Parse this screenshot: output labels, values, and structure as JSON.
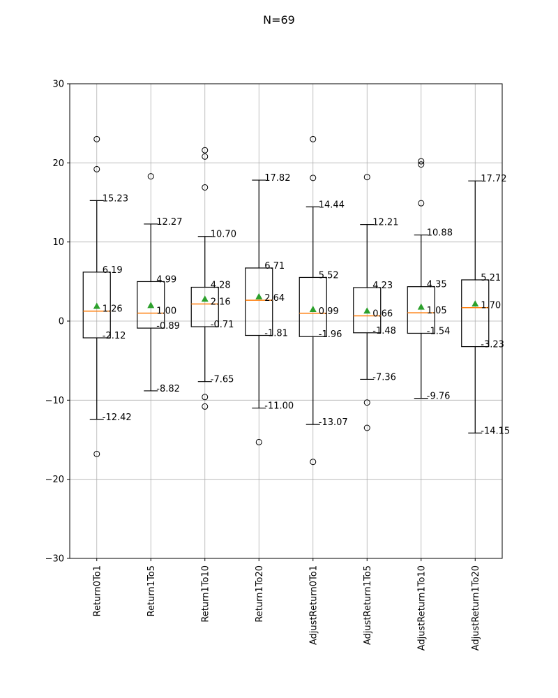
{
  "chart_data": {
    "type": "box",
    "title": "N=69",
    "xlabel": "",
    "ylabel": "",
    "ylim": [
      -30,
      30
    ],
    "yticks": [
      -30,
      -20,
      -10,
      0,
      10,
      20,
      30
    ],
    "ytick_labels": [
      "−30",
      "−20",
      "−10",
      "0",
      "10",
      "20",
      "30"
    ],
    "grid": true,
    "colors": {
      "box": "#000000",
      "median": "#ff7f0e",
      "mean": "#2ca02c",
      "grid": "#b0b0b0"
    },
    "categories": [
      "Return0To1",
      "Return1To5",
      "Return1To10",
      "Return1To20",
      "AdjustReturn0To1",
      "AdjustReturn1To5",
      "AdjustReturn1To10",
      "AdjustReturn1To20"
    ],
    "boxes": [
      {
        "name": "Return0To1",
        "whisker_high": 15.23,
        "q3": 6.19,
        "median": 1.26,
        "q1": -2.12,
        "whisker_low": -12.42,
        "mean": 1.9,
        "labels": {
          "whisker_high": "15.23",
          "q3": "6.19",
          "median": "1.26",
          "q1": "-2.12",
          "whisker_low": "-12.42"
        },
        "outliers": [
          23.0,
          19.2,
          -16.8
        ]
      },
      {
        "name": "Return1To5",
        "whisker_high": 12.27,
        "q3": 4.99,
        "median": 1.0,
        "q1": -0.89,
        "whisker_low": -8.82,
        "mean": 2.0,
        "labels": {
          "whisker_high": "12.27",
          "q3": "4.99",
          "median": "1.00",
          "q1": "-0.89",
          "whisker_low": "-8.82"
        },
        "outliers": [
          18.3
        ]
      },
      {
        "name": "Return1To10",
        "whisker_high": 10.7,
        "q3": 4.28,
        "median": 2.16,
        "q1": -0.71,
        "whisker_low": -7.65,
        "mean": 2.8,
        "labels": {
          "whisker_high": "10.70",
          "q3": "4.28",
          "median": "2.16",
          "q1": "-0.71",
          "whisker_low": "-7.65"
        },
        "outliers": [
          21.6,
          20.8,
          16.9,
          -9.6,
          -10.8
        ]
      },
      {
        "name": "Return1To20",
        "whisker_high": 17.82,
        "q3": 6.71,
        "median": 2.64,
        "q1": -1.81,
        "whisker_low": -11.0,
        "mean": 3.1,
        "labels": {
          "whisker_high": "17.82",
          "q3": "6.71",
          "median": "2.64",
          "q1": "-1.81",
          "whisker_low": "-11.00"
        },
        "outliers": [
          -15.3
        ]
      },
      {
        "name": "AdjustReturn0To1",
        "whisker_high": 14.44,
        "q3": 5.52,
        "median": 0.99,
        "q1": -1.96,
        "whisker_low": -13.07,
        "mean": 1.5,
        "labels": {
          "whisker_high": "14.44",
          "q3": "5.52",
          "median": "0.99",
          "q1": "-1.96",
          "whisker_low": "-13.07"
        },
        "outliers": [
          23.0,
          18.1,
          -17.8
        ]
      },
      {
        "name": "AdjustReturn1To5",
        "whisker_high": 12.21,
        "q3": 4.23,
        "median": 0.66,
        "q1": -1.48,
        "whisker_low": -7.36,
        "mean": 1.3,
        "labels": {
          "whisker_high": "12.21",
          "q3": "4.23",
          "median": "0.66",
          "q1": "-1.48",
          "whisker_low": "-7.36"
        },
        "outliers": [
          18.2,
          -10.3,
          -13.5
        ]
      },
      {
        "name": "AdjustReturn1To10",
        "whisker_high": 10.88,
        "q3": 4.35,
        "median": 1.05,
        "q1": -1.54,
        "whisker_low": -9.76,
        "mean": 1.8,
        "labels": {
          "whisker_high": "10.88",
          "q3": "4.35",
          "median": "1.05",
          "q1": "-1.54",
          "whisker_low": "-9.76"
        },
        "outliers": [
          20.2,
          19.8,
          14.9
        ]
      },
      {
        "name": "AdjustReturn1To20",
        "whisker_high": 17.72,
        "q3": 5.21,
        "median": 1.7,
        "q1": -3.23,
        "whisker_low": -14.15,
        "mean": 2.2,
        "labels": {
          "whisker_high": "17.72",
          "q3": "5.21",
          "median": "1.70",
          "q1": "-3.23",
          "whisker_low": "-14.15"
        },
        "outliers": []
      }
    ]
  }
}
